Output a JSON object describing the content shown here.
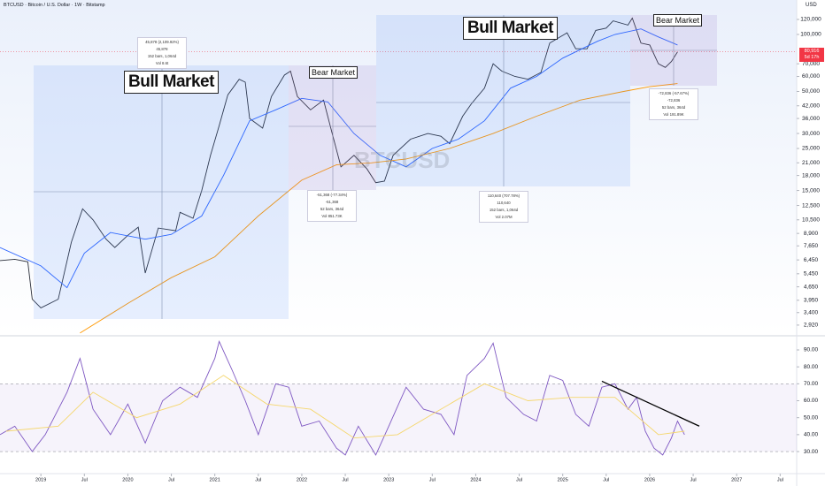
{
  "header": {
    "symbol_line": "BTCUSD · Bitcoin / U.S. Dollar · 1W · Bitstamp",
    "currency": "USD",
    "watermark": "BTCUSD",
    "last_price": {
      "value": 80916,
      "label": "80,916"
    },
    "countdown": "5d 17h"
  },
  "annotations": [
    {
      "title": "Bull Market",
      "lines": [
        "45,878 (2,109.92%) 45,878",
        "152 bars, 1,064d",
        "Vol 8.6t"
      ]
    },
    {
      "title": "Bear Market",
      "lines": [
        "-51,368 (-77.34%) -51,368",
        "52 bars, 364d",
        "Vol 851.73K"
      ]
    },
    {
      "title": "Bull Market",
      "lines": [
        "110,640 (707.78%) 110,640",
        "152 bars, 1,064d",
        "Vol 2.07M"
      ]
    },
    {
      "title": "Bear Market",
      "lines": [
        "-72,836 (-57.67%) -72,836",
        "52 bars, 364d",
        "Vol 191.89K"
      ]
    }
  ],
  "chart_data": [
    {
      "type": "line",
      "log_scale": true,
      "xlim": [
        2018.53,
        2027.69
      ],
      "ylim": [
        2620,
        152000
      ],
      "yticks": [
        {
          "value": 120000,
          "label": "120,000"
        },
        {
          "value": 100000,
          "label": "100,000"
        },
        {
          "value": 70000,
          "label": "70,000"
        },
        {
          "value": 60000,
          "label": "60,000"
        },
        {
          "value": 50000,
          "label": "50,000"
        },
        {
          "value": 42000,
          "label": "42,000"
        },
        {
          "value": 36000,
          "label": "36,000"
        },
        {
          "value": 30000,
          "label": "30,000"
        },
        {
          "value": 25000,
          "label": "25,000"
        },
        {
          "value": 21000,
          "label": "21,000"
        },
        {
          "value": 18000,
          "label": "18,000"
        },
        {
          "value": 15000,
          "label": "15,000"
        },
        {
          "value": 12500,
          "label": "12,500"
        },
        {
          "value": 10500,
          "label": "10,500"
        },
        {
          "value": 8900,
          "label": "8,900"
        },
        {
          "value": 7650,
          "label": "7,650"
        },
        {
          "value": 6450,
          "label": "6,450"
        },
        {
          "value": 5450,
          "label": "5,450"
        },
        {
          "value": 4650,
          "label": "4,650"
        },
        {
          "value": 3950,
          "label": "3,950"
        },
        {
          "value": 3400,
          "label": "3,400"
        },
        {
          "value": 2920,
          "label": "2,920"
        }
      ],
      "series": [
        {
          "color": "#2a2e39",
          "x": [
            2018.53,
            2018.7,
            2018.85,
            2018.9,
            2019.0,
            2019.2,
            2019.35,
            2019.48,
            2019.6,
            2019.75,
            2019.85,
            2020.0,
            2020.12,
            2020.2,
            2020.35,
            2020.55,
            2020.6,
            2020.75,
            2020.85,
            2020.95,
            2021.05,
            2021.15,
            2021.28,
            2021.35,
            2021.4,
            2021.55,
            2021.65,
            2021.8,
            2021.87,
            2021.95,
            2022.1,
            2022.25,
            2022.35,
            2022.45,
            2022.6,
            2022.75,
            2022.85,
            2022.95,
            2023.05,
            2023.25,
            2023.45,
            2023.6,
            2023.7,
            2023.85,
            2023.95,
            2024.1,
            2024.2,
            2024.3,
            2024.45,
            2024.6,
            2024.75,
            2024.85,
            2024.97,
            2025.05,
            2025.15,
            2025.28,
            2025.38,
            2025.5,
            2025.58,
            2025.75,
            2025.8,
            2025.85,
            2025.9,
            2026.0,
            2026.1,
            2026.18,
            2026.25,
            2026.32
          ],
          "values": [
            6400,
            6500,
            6300,
            4000,
            3600,
            4000,
            8000,
            12000,
            10500,
            8300,
            7500,
            8700,
            9600,
            5500,
            9500,
            9200,
            11500,
            10700,
            15000,
            23000,
            33000,
            48000,
            58000,
            56000,
            36000,
            32000,
            47000,
            61000,
            64000,
            47000,
            40000,
            45000,
            30000,
            20000,
            23000,
            19500,
            16500,
            16800,
            23000,
            28000,
            30000,
            29000,
            26500,
            37000,
            43000,
            52000,
            70000,
            64000,
            60000,
            58000,
            63000,
            90000,
            97000,
            102000,
            84000,
            84000,
            105000,
            108000,
            118000,
            112000,
            122000,
            105000,
            90000,
            88000,
            70000,
            67000,
            72000,
            80916
          ]
        },
        {
          "color": "#2962ff",
          "x": [
            2018.53,
            2019.0,
            2019.3,
            2019.5,
            2019.8,
            2020.2,
            2020.5,
            2020.85,
            2021.1,
            2021.4,
            2021.7,
            2022.0,
            2022.3,
            2022.6,
            2022.9,
            2023.2,
            2023.5,
            2023.8,
            2024.1,
            2024.4,
            2024.7,
            2025.0,
            2025.4,
            2025.6,
            2025.9,
            2026.1,
            2026.32
          ],
          "values": [
            7500,
            6000,
            4600,
            7000,
            9000,
            8300,
            8800,
            11000,
            18000,
            35000,
            40000,
            46000,
            44000,
            30000,
            23000,
            20000,
            25000,
            28000,
            35000,
            52000,
            60000,
            75000,
            92000,
            100000,
            107000,
            97000,
            88000
          ]
        },
        {
          "color": "#ff9800",
          "x": [
            2019.45,
            2020.0,
            2020.5,
            2021.0,
            2021.5,
            2022.0,
            2022.4,
            2022.8,
            2023.2,
            2023.7,
            2024.2,
            2024.7,
            2025.2,
            2025.7,
            2026.0,
            2026.32
          ],
          "values": [
            2650,
            3800,
            5200,
            6700,
            11000,
            17000,
            20500,
            21000,
            22000,
            25000,
            30000,
            37000,
            45000,
            50000,
            53000,
            55000
          ]
        }
      ]
    },
    {
      "type": "line",
      "xlim": [
        2018.53,
        2027.69
      ],
      "ylim": [
        17.5,
        97.3
      ],
      "yticks": [
        {
          "value": 90,
          "label": "90.00"
        },
        {
          "value": 80,
          "label": "80.00"
        },
        {
          "value": 70,
          "label": "70.00"
        },
        {
          "value": 60,
          "label": "60.00"
        },
        {
          "value": 50,
          "label": "50.00"
        },
        {
          "value": 40,
          "label": "40.00"
        },
        {
          "value": 30,
          "label": "30.00"
        }
      ],
      "levels": [
        70,
        30
      ],
      "xticks": [
        {
          "value": 2019,
          "label": "2019"
        },
        {
          "value": 2019.5,
          "label": "Jul"
        },
        {
          "value": 2020,
          "label": "2020"
        },
        {
          "value": 2020.5,
          "label": "Jul"
        },
        {
          "value": 2021,
          "label": "2021"
        },
        {
          "value": 2021.5,
          "label": "Jul"
        },
        {
          "value": 2022,
          "label": "2022"
        },
        {
          "value": 2022.5,
          "label": "Jul"
        },
        {
          "value": 2023,
          "label": "2023"
        },
        {
          "value": 2023.5,
          "label": "Jul"
        },
        {
          "value": 2024,
          "label": "2024"
        },
        {
          "value": 2024.5,
          "label": "Jul"
        },
        {
          "value": 2025,
          "label": "2025"
        },
        {
          "value": 2025.5,
          "label": "Jul"
        },
        {
          "value": 2026,
          "label": "2026"
        },
        {
          "value": 2026.5,
          "label": "Jul"
        },
        {
          "value": 2027,
          "label": "2027"
        },
        {
          "value": 2027.5,
          "label": "Jul"
        }
      ],
      "series": [
        {
          "color": "#7e57c2",
          "x": [
            2018.53,
            2018.7,
            2018.9,
            2019.05,
            2019.3,
            2019.45,
            2019.6,
            2019.8,
            2020.0,
            2020.2,
            2020.4,
            2020.6,
            2020.8,
            2021.0,
            2021.05,
            2021.2,
            2021.35,
            2021.5,
            2021.7,
            2021.85,
            2022.0,
            2022.2,
            2022.4,
            2022.5,
            2022.65,
            2022.85,
            2023.0,
            2023.2,
            2023.4,
            2023.6,
            2023.75,
            2023.9,
            2024.1,
            2024.2,
            2024.35,
            2024.55,
            2024.7,
            2024.85,
            2025.0,
            2025.15,
            2025.3,
            2025.45,
            2025.6,
            2025.75,
            2025.85,
            2025.95,
            2026.05,
            2026.15,
            2026.25,
            2026.32,
            2026.4
          ],
          "values": [
            40,
            45,
            30,
            40,
            65,
            85,
            55,
            40,
            58,
            35,
            60,
            68,
            62,
            85,
            95,
            78,
            60,
            40,
            70,
            68,
            45,
            48,
            32,
            28,
            45,
            28,
            45,
            68,
            55,
            52,
            40,
            75,
            85,
            94,
            62,
            52,
            48,
            75,
            72,
            52,
            45,
            68,
            70,
            55,
            62,
            42,
            32,
            28,
            38,
            48,
            40
          ]
        },
        {
          "color": "#f5d76e",
          "x": [
            2018.6,
            2019.2,
            2019.6,
            2020.1,
            2020.6,
            2021.1,
            2021.6,
            2022.1,
            2022.6,
            2023.1,
            2023.6,
            2024.1,
            2024.6,
            2025.1,
            2025.6,
            2026.1,
            2026.4
          ],
          "values": [
            42,
            45,
            65,
            50,
            58,
            75,
            58,
            55,
            38,
            40,
            55,
            70,
            60,
            62,
            62,
            40,
            42
          ]
        }
      ],
      "trendline": {
        "color": "#000000",
        "x": [
          2025.45,
          2026.57
        ],
        "values": [
          71.5,
          45
        ]
      }
    }
  ]
}
